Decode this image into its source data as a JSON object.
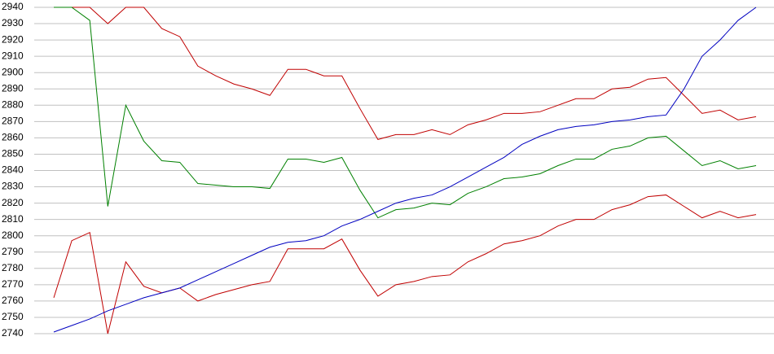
{
  "chart_data": {
    "type": "line",
    "ylim": [
      2740,
      2940
    ],
    "yticks": [
      2740,
      2750,
      2760,
      2770,
      2780,
      2790,
      2800,
      2810,
      2820,
      2830,
      2840,
      2850,
      2860,
      2870,
      2880,
      2890,
      2900,
      2910,
      2920,
      2930,
      2940
    ],
    "grid": true,
    "series": [
      {
        "color": "#c00000",
        "values": [
          2940,
          2940,
          2940,
          2930,
          2940,
          2940,
          2927,
          2922,
          2904,
          2898,
          2893,
          2890,
          2886,
          2902,
          2902,
          2898,
          2898,
          2878,
          2859,
          2862,
          2862,
          2865,
          2862,
          2868,
          2871,
          2875,
          2875,
          2876,
          2880,
          2884,
          2884,
          2890,
          2891,
          2896,
          2897,
          2886,
          2875,
          2877,
          2871,
          2873
        ]
      },
      {
        "color": "#008000",
        "values": [
          2940,
          2940,
          2932,
          2818,
          2880,
          2858,
          2846,
          2845,
          2832,
          2831,
          2830,
          2830,
          2829,
          2847,
          2847,
          2845,
          2848,
          2828,
          2811,
          2816,
          2817,
          2820,
          2819,
          2826,
          2830,
          2835,
          2836,
          2838,
          2843,
          2847,
          2847,
          2853,
          2855,
          2860,
          2861,
          2852,
          2843,
          2846,
          2841,
          2843
        ]
      },
      {
        "color": "#c00000",
        "values": [
          2762,
          2797,
          2802,
          2740,
          2784,
          2769,
          2765,
          2768,
          2760,
          2764,
          2767,
          2770,
          2772,
          2792,
          2792,
          2792,
          2798,
          2779,
          2763,
          2770,
          2772,
          2775,
          2776,
          2784,
          2789,
          2795,
          2797,
          2800,
          2806,
          2810,
          2810,
          2816,
          2819,
          2824,
          2825,
          2818,
          2811,
          2815,
          2811,
          2813
        ]
      },
      {
        "color": "#0000c0",
        "values": [
          2741,
          2745,
          2749,
          2754,
          2758,
          2762,
          2765,
          2768,
          2773,
          2778,
          2783,
          2788,
          2793,
          2796,
          2797,
          2800,
          2806,
          2810,
          2815,
          2820,
          2823,
          2825,
          2830,
          2836,
          2842,
          2848,
          2856,
          2861,
          2865,
          2867,
          2868,
          2870,
          2871,
          2873,
          2874,
          2890,
          2910,
          2920,
          2932,
          2940
        ]
      }
    ]
  }
}
